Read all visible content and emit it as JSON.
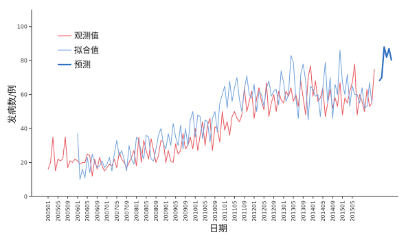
{
  "chart_data": {
    "type": "line",
    "xlabel": "日期",
    "ylabel": "发病数/例",
    "ylim": [
      0,
      110
    ],
    "yticks": [
      0,
      20,
      40,
      60,
      80,
      100
    ],
    "legend_position": "top-left",
    "x_tick_labels": [
      "200501",
      "200505",
      "200509",
      "200601",
      "200605",
      "200609",
      "200701",
      "200705",
      "200709",
      "200801",
      "200805",
      "200809",
      "200901",
      "200905",
      "200909",
      "201001",
      "201005",
      "201009",
      "201101",
      "201105",
      "201109",
      "201201",
      "201205",
      "201209",
      "201301",
      "201305",
      "201309",
      "201401",
      "201405",
      "201409",
      "201501",
      "201505"
    ],
    "series": [
      {
        "name": "观测值",
        "color": "#e8535a",
        "line_width": 1,
        "start_index": 0,
        "values": [
          16,
          20,
          35,
          15,
          22,
          21,
          22,
          35,
          17,
          21,
          20,
          22,
          21,
          19,
          20,
          20,
          25,
          24,
          12,
          22,
          16,
          23,
          18,
          15,
          17,
          19,
          18,
          22,
          17,
          26,
          22,
          20,
          17,
          20,
          23,
          27,
          18,
          35,
          20,
          33,
          27,
          22,
          34,
          27,
          20,
          24,
          33,
          32,
          20,
          27,
          21,
          20,
          31,
          25,
          27,
          37,
          28,
          30,
          35,
          28,
          40,
          27,
          36,
          44,
          30,
          42,
          46,
          27,
          41,
          40,
          32,
          50,
          39,
          44,
          36,
          47,
          50,
          46,
          44,
          48,
          64,
          50,
          56,
          62,
          46,
          58,
          64,
          56,
          51,
          67,
          47,
          55,
          60,
          50,
          62,
          57,
          55,
          62,
          59,
          64,
          56,
          60,
          53,
          68,
          58,
          48,
          70,
          77,
          59,
          68,
          56,
          58,
          64,
          47,
          55,
          63,
          52,
          58,
          53,
          67,
          48,
          58,
          55,
          62,
          67,
          78,
          48,
          60,
          56,
          50,
          63,
          53,
          55,
          75
        ]
      },
      {
        "name": "拟合值",
        "color": "#6fa0dc",
        "line_width": 1,
        "start_index": 12,
        "values": [
          37,
          10,
          16,
          11,
          23,
          14,
          25,
          20,
          17,
          18,
          21,
          17,
          19,
          23,
          15,
          25,
          33,
          24,
          27,
          22,
          15,
          30,
          22,
          19,
          35,
          33,
          26,
          22,
          36,
          35,
          22,
          21,
          28,
          36,
          40,
          31,
          28,
          37,
          30,
          43,
          35,
          30,
          42,
          28,
          40,
          30,
          45,
          50,
          35,
          48,
          47,
          34,
          45,
          44,
          32,
          46,
          50,
          38,
          55,
          60,
          65,
          52,
          68,
          56,
          64,
          70,
          57,
          50,
          63,
          71,
          60,
          58,
          66,
          50,
          62,
          60,
          53,
          64,
          68,
          59,
          62,
          63,
          54,
          74,
          67,
          56,
          60,
          83,
          79,
          58,
          46,
          72,
          78,
          68,
          45,
          65,
          63,
          59,
          60,
          47,
          64,
          79,
          55,
          70,
          46,
          66,
          60,
          86,
          67,
          60,
          72,
          53,
          65,
          60,
          60,
          55,
          64,
          52,
          53,
          67,
          55
        ]
      },
      {
        "name": "预测",
        "color": "#2f6fc2",
        "line_width": 2.2,
        "start_index": 135,
        "values": [
          68,
          70,
          88,
          82,
          87,
          80
        ]
      }
    ]
  }
}
